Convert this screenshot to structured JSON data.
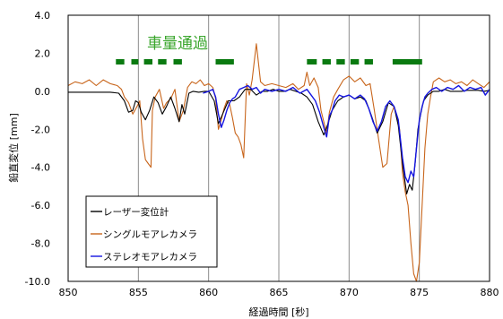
{
  "chart_data": {
    "type": "line",
    "xlabel": "経過時間 [秒]",
    "ylabel": "鉛直変位 [mm]",
    "xlim": [
      850,
      880
    ],
    "ylim": [
      -10,
      4
    ],
    "x_ticks": [
      "850",
      "855",
      "860",
      "865",
      "870",
      "875",
      "880"
    ],
    "y_ticks": [
      "4.0",
      "2.0",
      "0.0",
      "-2.0",
      "-4.0",
      "-6.0",
      "-8.0",
      "-10.0"
    ],
    "grid": "vertical",
    "legend_position": "bottom-left",
    "annotation": {
      "text": "車量通過",
      "color": "#3aa62c",
      "bar_color": "#0a7a10",
      "bar_y": 1.55,
      "bars": [
        [
          853.4,
          854.0
        ],
        [
          854.5,
          855.0
        ],
        [
          855.4,
          856.0
        ],
        [
          856.4,
          857.0
        ],
        [
          857.5,
          858.1
        ],
        [
          860.5,
          861.8
        ],
        [
          867.0,
          867.7
        ],
        [
          868.1,
          868.7
        ],
        [
          869.1,
          869.7
        ],
        [
          870.1,
          870.7
        ],
        [
          871.1,
          871.7
        ],
        [
          873.1,
          875.2
        ]
      ]
    },
    "series": [
      {
        "name": "レーザー変位計",
        "color": "#000000",
        "x": [
          850.0,
          851.5,
          853.0,
          853.6,
          854.0,
          854.3,
          854.6,
          854.8,
          855.0,
          855.2,
          855.5,
          855.8,
          856.1,
          856.4,
          856.7,
          857.0,
          857.3,
          857.6,
          857.9,
          858.1,
          858.3,
          858.6,
          858.9,
          859.3,
          859.7,
          860.0,
          860.4,
          860.7,
          861.0,
          861.4,
          861.8,
          862.2,
          862.6,
          863.0,
          863.4,
          863.8,
          864.2,
          864.6,
          865.0,
          865.4,
          865.8,
          866.2,
          866.6,
          867.0,
          867.4,
          867.8,
          868.2,
          868.5,
          868.8,
          869.2,
          869.6,
          870.0,
          870.4,
          870.8,
          871.2,
          871.6,
          872.0,
          872.4,
          872.8,
          873.2,
          873.5,
          873.8,
          874.1,
          874.3,
          874.5,
          874.7,
          874.9,
          875.1,
          875.3,
          875.6,
          876.0,
          876.4,
          876.8,
          877.2,
          877.6,
          878.0,
          878.4,
          878.8,
          879.2,
          879.6,
          880.0
        ],
        "y": [
          -0.05,
          -0.05,
          -0.05,
          -0.1,
          -0.5,
          -1.1,
          -1.0,
          -0.5,
          -0.6,
          -1.1,
          -1.5,
          -1.0,
          -0.3,
          -0.6,
          -1.2,
          -0.8,
          -0.3,
          -0.9,
          -1.6,
          -0.7,
          -1.2,
          -0.1,
          0.0,
          -0.05,
          0.0,
          0.0,
          -0.5,
          -1.7,
          -1.2,
          -0.5,
          -0.5,
          -0.3,
          0.1,
          0.1,
          -0.2,
          0.0,
          0.0,
          0.1,
          0.0,
          0.0,
          0.1,
          0.0,
          -0.1,
          -0.3,
          -0.7,
          -1.6,
          -2.3,
          -1.7,
          -1.0,
          -0.5,
          -0.3,
          -0.2,
          -0.4,
          -0.3,
          -0.5,
          -1.3,
          -2.2,
          -1.6,
          -0.6,
          -0.8,
          -1.8,
          -3.8,
          -5.4,
          -4.9,
          -5.2,
          -3.8,
          -2.0,
          -1.2,
          -0.5,
          -0.2,
          0.0,
          0.0,
          0.1,
          0.0,
          0.0,
          0.0,
          0.05,
          0.05,
          0.05,
          0.0,
          0.05
        ]
      },
      {
        "name": "シングルモアレカメラ",
        "color": "#c8651b",
        "x": [
          850.0,
          850.5,
          851.0,
          851.5,
          852.0,
          852.5,
          853.0,
          853.5,
          853.8,
          854.0,
          854.3,
          854.6,
          854.9,
          855.1,
          855.3,
          855.5,
          855.7,
          855.9,
          856.0,
          856.2,
          856.5,
          856.8,
          857.0,
          857.3,
          857.6,
          857.9,
          858.2,
          858.5,
          858.8,
          859.1,
          859.4,
          859.7,
          860.0,
          860.3,
          860.5,
          860.7,
          860.9,
          861.1,
          861.3,
          861.5,
          861.7,
          861.9,
          862.1,
          862.3,
          862.5,
          862.7,
          862.9,
          863.1,
          863.4,
          863.7,
          864.0,
          864.5,
          865.0,
          865.5,
          866.0,
          866.4,
          866.8,
          867.0,
          867.2,
          867.5,
          867.8,
          868.0,
          868.2,
          868.4,
          868.6,
          868.9,
          869.2,
          869.6,
          870.0,
          870.4,
          870.8,
          871.2,
          871.5,
          871.8,
          872.1,
          872.4,
          872.7,
          873.0,
          873.2,
          873.4,
          873.6,
          873.8,
          874.0,
          874.2,
          874.4,
          874.6,
          874.8,
          875.0,
          875.2,
          875.4,
          875.6,
          875.8,
          876.0,
          876.4,
          876.8,
          877.2,
          877.6,
          878.0,
          878.4,
          878.8,
          879.2,
          879.6,
          880.0
        ],
        "y": [
          0.3,
          0.5,
          0.4,
          0.6,
          0.3,
          0.6,
          0.4,
          0.3,
          0.1,
          -0.3,
          -0.6,
          -1.2,
          -0.8,
          -0.5,
          -2.5,
          -3.6,
          -3.8,
          -4.0,
          -1.0,
          -0.3,
          0.1,
          -0.9,
          -0.6,
          -0.4,
          0.1,
          -1.6,
          -1.0,
          0.2,
          0.5,
          0.4,
          0.6,
          0.3,
          0.4,
          0.2,
          -0.4,
          -2.0,
          -1.5,
          -0.9,
          -0.5,
          -0.7,
          -1.4,
          -2.2,
          -2.4,
          -2.8,
          -3.5,
          0.4,
          -0.2,
          0.6,
          2.5,
          0.5,
          0.3,
          0.4,
          0.3,
          0.2,
          0.4,
          0.1,
          0.3,
          1.0,
          0.3,
          0.7,
          0.2,
          -1.0,
          -1.6,
          -2.2,
          -1.1,
          -0.3,
          0.1,
          0.6,
          0.8,
          0.5,
          0.7,
          0.3,
          0.4,
          -1.0,
          -2.5,
          -4.0,
          -3.8,
          -1.2,
          -0.8,
          -1.3,
          -2.0,
          -4.3,
          -5.3,
          -6.0,
          -8.0,
          -9.6,
          -10.0,
          -9.0,
          -6.0,
          -3.0,
          -1.2,
          -0.3,
          0.5,
          0.7,
          0.5,
          0.6,
          0.4,
          0.5,
          0.3,
          0.6,
          0.4,
          0.2,
          0.5
        ]
      },
      {
        "name": "ステレオモアレカメラ",
        "color": "#1515e0",
        "x": [
          859.6,
          860.0,
          860.3,
          860.5,
          860.7,
          860.9,
          861.1,
          861.3,
          861.5,
          861.7,
          861.9,
          862.2,
          862.5,
          862.8,
          863.1,
          863.4,
          863.7,
          864.0,
          864.5,
          865.0,
          865.5,
          866.0,
          866.5,
          867.0,
          867.3,
          867.6,
          867.9,
          868.2,
          868.4,
          868.6,
          868.8,
          869.0,
          869.3,
          869.6,
          870.0,
          870.4,
          870.8,
          871.1,
          871.4,
          871.7,
          872.0,
          872.3,
          872.6,
          872.9,
          873.2,
          873.5,
          873.8,
          874.0,
          874.2,
          874.4,
          874.6,
          874.8,
          875.0,
          875.2,
          875.4,
          875.6,
          875.9,
          876.2,
          876.6,
          877.0,
          877.4,
          877.8,
          878.2,
          878.6,
          879.0,
          879.4,
          879.7,
          880.0
        ],
        "y": [
          -0.1,
          0.0,
          0.1,
          -0.3,
          -1.2,
          -1.9,
          -1.5,
          -1.0,
          -0.6,
          -0.4,
          -0.3,
          0.1,
          0.2,
          0.3,
          0.1,
          0.2,
          -0.1,
          0.1,
          0.0,
          0.1,
          0.0,
          0.2,
          -0.1,
          0.1,
          -0.2,
          -0.5,
          -1.1,
          -1.9,
          -2.4,
          -1.3,
          -1.0,
          -0.5,
          -0.2,
          -0.3,
          -0.2,
          -0.4,
          -0.2,
          -0.4,
          -0.9,
          -1.6,
          -2.1,
          -1.6,
          -0.8,
          -0.5,
          -0.8,
          -1.5,
          -3.5,
          -4.5,
          -4.8,
          -4.2,
          -4.5,
          -3.0,
          -1.5,
          -0.8,
          -0.3,
          -0.1,
          0.1,
          0.2,
          0.0,
          0.2,
          0.1,
          0.3,
          0.0,
          0.2,
          0.1,
          0.2,
          -0.2,
          0.1
        ]
      }
    ]
  }
}
